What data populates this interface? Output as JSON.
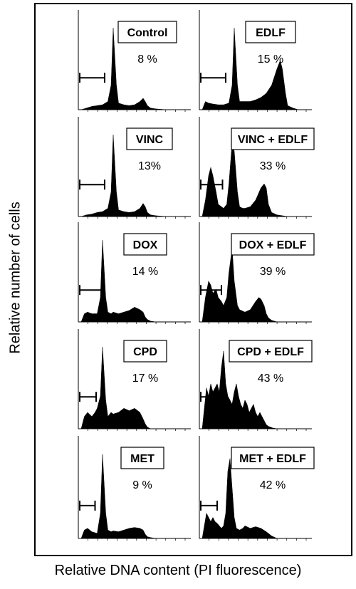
{
  "axes": {
    "ylabel": "Relative number of cells",
    "xlabel": "Relative DNA content (PI fluorescence)"
  },
  "chart_data": [
    {
      "type": "area",
      "title": "Control",
      "value_label": "8 %",
      "subG1_percent": 8,
      "x": [
        0,
        5,
        10,
        15,
        20,
        25,
        28,
        30,
        33,
        35,
        40,
        45,
        50,
        55,
        58,
        60,
        62,
        65,
        70,
        80,
        90,
        100
      ],
      "y": [
        0,
        0.02,
        0.04,
        0.05,
        0.06,
        0.1,
        0.3,
        1.0,
        0.3,
        0.08,
        0.06,
        0.05,
        0.06,
        0.1,
        0.14,
        0.1,
        0.05,
        0.02,
        0.01,
        0,
        0,
        0
      ]
    },
    {
      "type": "area",
      "title": "EDLF",
      "value_label": "15 %",
      "subG1_percent": 15,
      "x": [
        0,
        3,
        6,
        10,
        15,
        20,
        25,
        28,
        30,
        33,
        35,
        40,
        45,
        50,
        55,
        60,
        65,
        70,
        73,
        75,
        78,
        80,
        85,
        90,
        100
      ],
      "y": [
        0,
        0.1,
        0.08,
        0.07,
        0.06,
        0.06,
        0.08,
        0.3,
        1.0,
        0.3,
        0.1,
        0.1,
        0.1,
        0.12,
        0.15,
        0.2,
        0.3,
        0.5,
        0.6,
        0.5,
        0.2,
        0.05,
        0.02,
        0,
        0
      ]
    },
    {
      "type": "area",
      "title": "VINC",
      "value_label": "13%",
      "subG1_percent": 13,
      "x": [
        0,
        5,
        10,
        15,
        20,
        25,
        28,
        30,
        33,
        35,
        40,
        45,
        50,
        55,
        58,
        60,
        62,
        65,
        70,
        80,
        90,
        100
      ],
      "y": [
        0,
        0.02,
        0.03,
        0.05,
        0.06,
        0.1,
        0.3,
        1.0,
        0.3,
        0.08,
        0.06,
        0.05,
        0.06,
        0.1,
        0.16,
        0.12,
        0.05,
        0.02,
        0.01,
        0,
        0,
        0
      ]
    },
    {
      "type": "area",
      "title": "VINC + EDLF",
      "value_label": "33 %",
      "subG1_percent": 33,
      "x": [
        0,
        3,
        6,
        8,
        10,
        13,
        15,
        18,
        20,
        23,
        25,
        28,
        30,
        33,
        35,
        38,
        40,
        45,
        50,
        55,
        58,
        60,
        62,
        65,
        70,
        80,
        100
      ],
      "y": [
        0,
        0.2,
        0.5,
        0.6,
        0.5,
        0.3,
        0.15,
        0.12,
        0.1,
        0.15,
        0.4,
        0.9,
        0.8,
        0.3,
        0.12,
        0.1,
        0.1,
        0.12,
        0.2,
        0.35,
        0.4,
        0.35,
        0.15,
        0.05,
        0.02,
        0,
        0
      ]
    },
    {
      "type": "area",
      "title": "DOX",
      "value_label": "14 %",
      "subG1_percent": 14,
      "x": [
        0,
        3,
        6,
        10,
        15,
        18,
        20,
        23,
        25,
        28,
        30,
        35,
        40,
        45,
        50,
        55,
        58,
        60,
        62,
        65,
        70,
        80,
        100
      ],
      "y": [
        0,
        0.1,
        0.12,
        0.1,
        0.1,
        0.3,
        1.0,
        0.3,
        0.12,
        0.1,
        0.12,
        0.1,
        0.12,
        0.14,
        0.18,
        0.15,
        0.12,
        0.06,
        0.03,
        0.01,
        0,
        0,
        0
      ]
    },
    {
      "type": "area",
      "title": "DOX + EDLF",
      "value_label": "39 %",
      "subG1_percent": 39,
      "x": [
        0,
        3,
        6,
        8,
        10,
        13,
        15,
        18,
        20,
        23,
        25,
        28,
        30,
        33,
        35,
        40,
        45,
        50,
        53,
        55,
        58,
        60,
        62,
        65,
        70,
        80,
        100
      ],
      "y": [
        0,
        0.3,
        0.5,
        0.45,
        0.35,
        0.4,
        0.3,
        0.25,
        0.2,
        0.3,
        0.6,
        0.9,
        0.5,
        0.2,
        0.15,
        0.12,
        0.15,
        0.25,
        0.3,
        0.28,
        0.2,
        0.1,
        0.05,
        0.02,
        0,
        0,
        0
      ]
    },
    {
      "type": "area",
      "title": "CPD",
      "value_label": "17 %",
      "subG1_percent": 17,
      "x": [
        0,
        3,
        6,
        10,
        13,
        15,
        18,
        20,
        23,
        25,
        28,
        30,
        35,
        40,
        45,
        50,
        55,
        58,
        60,
        62,
        65,
        70,
        80,
        100
      ],
      "y": [
        0,
        0.15,
        0.2,
        0.15,
        0.2,
        0.25,
        0.4,
        1.0,
        0.35,
        0.15,
        0.2,
        0.18,
        0.2,
        0.25,
        0.22,
        0.25,
        0.2,
        0.12,
        0.06,
        0.02,
        0,
        0,
        0,
        0
      ]
    },
    {
      "type": "area",
      "title": "CPD + EDLF",
      "value_label": "43 %",
      "subG1_percent": 43,
      "x": [
        0,
        2,
        4,
        6,
        8,
        10,
        12,
        14,
        16,
        18,
        20,
        22,
        24,
        26,
        28,
        30,
        32,
        34,
        36,
        38,
        40,
        42,
        44,
        46,
        48,
        50,
        52,
        54,
        56,
        58,
        60,
        62,
        64,
        66,
        70,
        80,
        100
      ],
      "y": [
        0,
        0.25,
        0.5,
        0.4,
        0.55,
        0.45,
        0.5,
        0.55,
        0.45,
        0.75,
        0.95,
        0.55,
        0.4,
        0.35,
        0.3,
        0.45,
        0.55,
        0.4,
        0.3,
        0.25,
        0.35,
        0.3,
        0.2,
        0.25,
        0.3,
        0.2,
        0.15,
        0.2,
        0.15,
        0.1,
        0.05,
        0.03,
        0.02,
        0.01,
        0,
        0,
        0
      ]
    },
    {
      "type": "area",
      "title": "MET",
      "value_label": "9 %",
      "subG1_percent": 9,
      "x": [
        0,
        3,
        6,
        10,
        15,
        18,
        20,
        23,
        25,
        28,
        30,
        35,
        40,
        45,
        50,
        55,
        58,
        60,
        62,
        65,
        70,
        80,
        100
      ],
      "y": [
        0,
        0.1,
        0.12,
        0.08,
        0.06,
        0.3,
        1.0,
        0.3,
        0.1,
        0.08,
        0.09,
        0.08,
        0.1,
        0.12,
        0.13,
        0.12,
        0.1,
        0.05,
        0.02,
        0.01,
        0,
        0,
        0
      ]
    },
    {
      "type": "area",
      "title": "MET + EDLF",
      "value_label": "42 %",
      "subG1_percent": 42,
      "x": [
        0,
        2,
        4,
        6,
        8,
        10,
        12,
        14,
        16,
        18,
        20,
        22,
        24,
        26,
        28,
        30,
        32,
        35,
        38,
        40,
        45,
        50,
        55,
        60,
        65,
        70,
        80,
        100
      ],
      "y": [
        0,
        0.15,
        0.3,
        0.25,
        0.2,
        0.25,
        0.2,
        0.18,
        0.15,
        0.12,
        0.15,
        0.3,
        0.8,
        0.95,
        0.6,
        0.25,
        0.12,
        0.1,
        0.12,
        0.15,
        0.12,
        0.14,
        0.12,
        0.08,
        0.03,
        0,
        0,
        0
      ]
    }
  ]
}
